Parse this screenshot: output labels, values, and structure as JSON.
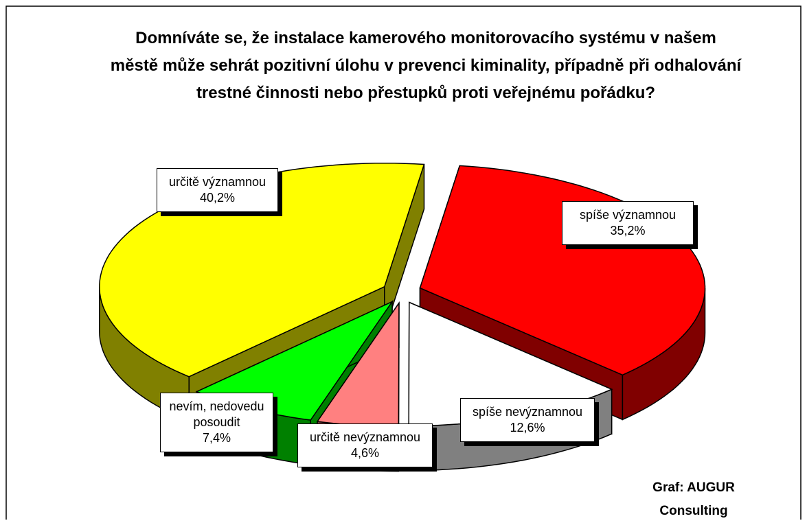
{
  "chart_data": {
    "type": "pie",
    "title": "Domníváte se, že instalace kamerového monitorovacího systému v našem městě může sehrát pozitivní úlohu v prevenci kiminality, případně při odhalování trestné činnosti nebo přestupků proti veřejnému pořádku?",
    "categories": [
      "spíše významnou",
      "spíše nevýznamnou",
      "určitě nevýznamnou",
      "nevím, nedovedu posoudit",
      "určitě významnou"
    ],
    "values": [
      35.2,
      12.6,
      4.6,
      7.4,
      40.2
    ],
    "value_labels": [
      "35,2%",
      "12,6%",
      "4,6%",
      "7,4%",
      "40,2%"
    ],
    "colors": [
      "#ff0000",
      "#ffffff",
      "#ff8080",
      "#00ff00",
      "#ffff00"
    ],
    "side_colors": [
      "#800000",
      "#808080",
      "#804040",
      "#008000",
      "#808000"
    ],
    "annotation": "Graf: AUGUR Consulting"
  }
}
